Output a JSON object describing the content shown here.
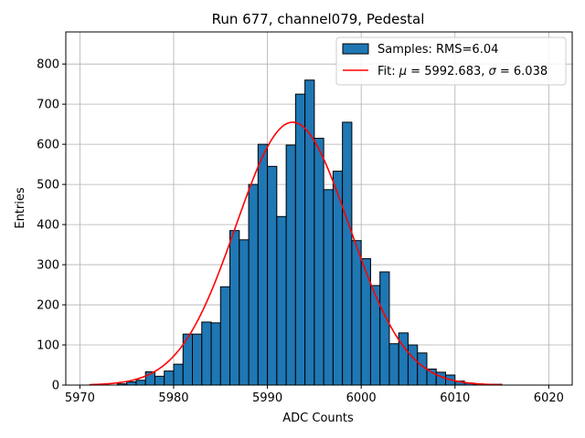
{
  "chart_data": {
    "type": "bar",
    "title": "Run 677, channel079, Pedestal",
    "xlabel": "ADC Counts",
    "ylabel": "Entries",
    "xlim": [
      5968.5,
      6022.5
    ],
    "ylim": [
      0,
      880
    ],
    "xticks": [
      5970,
      5980,
      5990,
      6000,
      6010,
      6020
    ],
    "yticks": [
      0,
      100,
      200,
      300,
      400,
      500,
      600,
      700,
      800
    ],
    "grid": true,
    "legend_position": "top-right",
    "colors": {
      "bars": "#1f77b4",
      "bar_edge": "#000000",
      "fit": "#ff0000",
      "grid": "#b0b0b0"
    },
    "histogram": {
      "name": "Samples: RMS=6.04",
      "bin_edges_start": 5971,
      "bin_width": 1,
      "counts": [
        0,
        0,
        0,
        3,
        8,
        12,
        33,
        22,
        35,
        52,
        127,
        127,
        157,
        155,
        245,
        385,
        362,
        500,
        600,
        545,
        420,
        598,
        725,
        760,
        615,
        487,
        533,
        655,
        360,
        315,
        248,
        282,
        103,
        130,
        100,
        80,
        40,
        32,
        25,
        10,
        5,
        3,
        2,
        2,
        0,
        0,
        0,
        0,
        0
      ]
    },
    "fit": {
      "name_prefix": "Fit: ",
      "mu_symbol": "μ",
      "mu_value": " = 5992.683, ",
      "sigma_symbol": "σ",
      "sigma_value": " = 6.038",
      "mu": 5992.683,
      "sigma": 6.038,
      "amplitude": 655,
      "x_range": [
        5971,
        6015
      ]
    }
  }
}
